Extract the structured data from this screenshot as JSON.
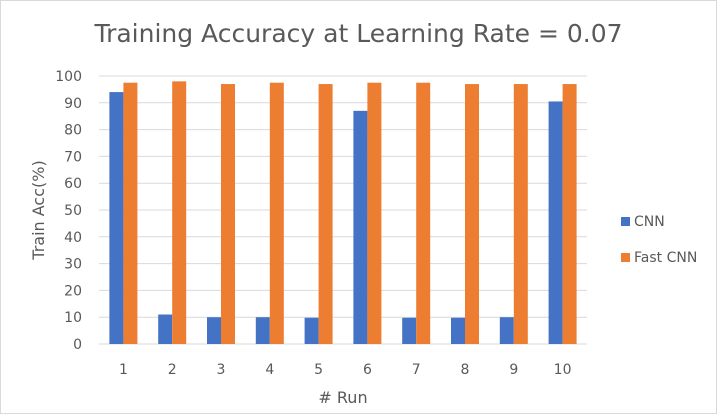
{
  "chart_data": {
    "type": "bar",
    "title": "Training Accuracy at Learning Rate = 0.07",
    "xlabel": "# Run",
    "ylabel": "Train Acc(%)",
    "categories": [
      "1",
      "2",
      "3",
      "4",
      "5",
      "6",
      "7",
      "8",
      "9",
      "10"
    ],
    "ylim": [
      0,
      100
    ],
    "yticks": [
      0,
      10,
      20,
      30,
      40,
      50,
      60,
      70,
      80,
      90,
      100
    ],
    "grid": true,
    "legend_position": "right",
    "series": [
      {
        "name": "CNN",
        "color": "#4472c4",
        "values": [
          94,
          11,
          10,
          10,
          9.8,
          87,
          9.8,
          9.8,
          10,
          90.5
        ]
      },
      {
        "name": "Fast CNN",
        "color": "#ed7d31",
        "values": [
          97.5,
          98,
          97,
          97.5,
          97,
          97.5,
          97.5,
          97,
          97,
          97
        ]
      }
    ]
  }
}
